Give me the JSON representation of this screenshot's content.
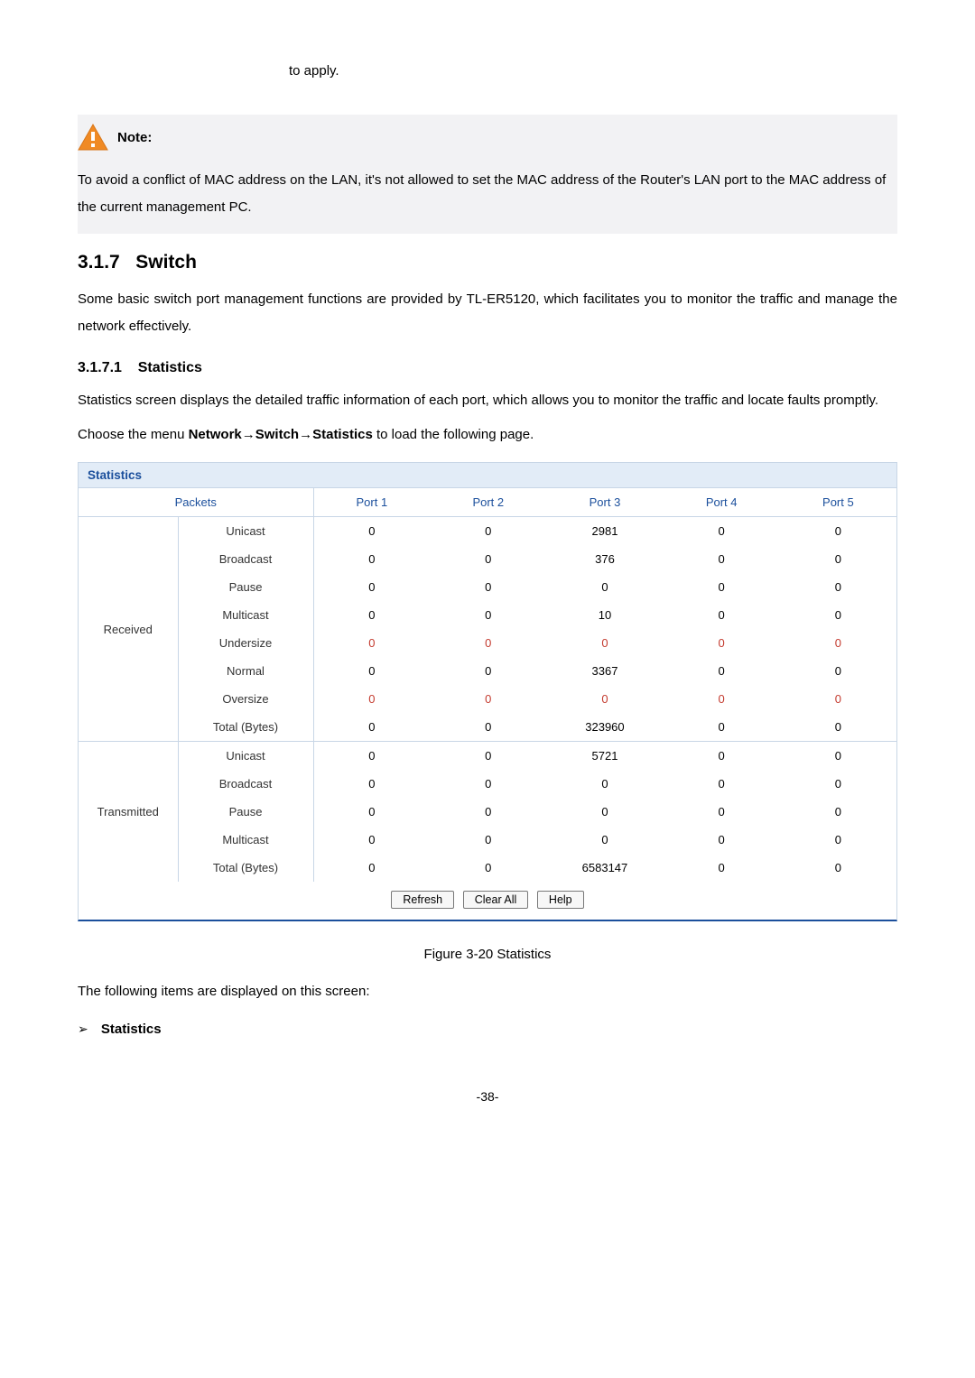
{
  "fragment_top": "to apply.",
  "note": {
    "label": "Note:",
    "body": "To avoid a conflict of MAC address on the LAN, it's not allowed to set the MAC address of the Router's LAN port to the MAC address of the current management PC."
  },
  "section_switch": {
    "number": "3.1.7",
    "title": "Switch",
    "intro": "Some basic switch port management functions are provided by TL-ER5120, which facilitates you to monitor the traffic and manage the network effectively."
  },
  "section_stats": {
    "number": "3.1.7.1",
    "title": "Statistics",
    "intro": "Statistics screen displays the detailed traffic information of each port, which allows you to monitor the traffic and locate faults promptly.",
    "menu_prefix": "Choose the menu ",
    "menu_path": "Network→Switch→Statistics",
    "menu_suffix": " to load the following page."
  },
  "stats_panel": {
    "title": "Statistics",
    "header_packets": "Packets",
    "port_headers": [
      "Port 1",
      "Port 2",
      "Port 3",
      "Port 4",
      "Port 5"
    ],
    "groups": [
      {
        "name": "Received",
        "rows": [
          {
            "label": "Unicast",
            "values": [
              "0",
              "0",
              "2981",
              "0",
              "0"
            ],
            "red": false
          },
          {
            "label": "Broadcast",
            "values": [
              "0",
              "0",
              "376",
              "0",
              "0"
            ],
            "red": false
          },
          {
            "label": "Pause",
            "values": [
              "0",
              "0",
              "0",
              "0",
              "0"
            ],
            "red": false
          },
          {
            "label": "Multicast",
            "values": [
              "0",
              "0",
              "10",
              "0",
              "0"
            ],
            "red": false
          },
          {
            "label": "Undersize",
            "values": [
              "0",
              "0",
              "0",
              "0",
              "0"
            ],
            "red": true
          },
          {
            "label": "Normal",
            "values": [
              "0",
              "0",
              "3367",
              "0",
              "0"
            ],
            "red": false
          },
          {
            "label": "Oversize",
            "values": [
              "0",
              "0",
              "0",
              "0",
              "0"
            ],
            "red": true
          },
          {
            "label": "Total (Bytes)",
            "values": [
              "0",
              "0",
              "323960",
              "0",
              "0"
            ],
            "red": false
          }
        ]
      },
      {
        "name": "Transmitted",
        "rows": [
          {
            "label": "Unicast",
            "values": [
              "0",
              "0",
              "5721",
              "0",
              "0"
            ],
            "red": false
          },
          {
            "label": "Broadcast",
            "values": [
              "0",
              "0",
              "0",
              "0",
              "0"
            ],
            "red": false
          },
          {
            "label": "Pause",
            "values": [
              "0",
              "0",
              "0",
              "0",
              "0"
            ],
            "red": false
          },
          {
            "label": "Multicast",
            "values": [
              "0",
              "0",
              "0",
              "0",
              "0"
            ],
            "red": false
          },
          {
            "label": "Total (Bytes)",
            "values": [
              "0",
              "0",
              "6583147",
              "0",
              "0"
            ],
            "red": false
          }
        ]
      }
    ],
    "buttons": {
      "refresh": "Refresh",
      "clear": "Clear All",
      "help": "Help"
    }
  },
  "figure_caption": "Figure 3-20 Statistics",
  "post_text": "The following items are displayed on this screen:",
  "bullet_label": "Statistics",
  "page_number": "-38-",
  "colors": {
    "note_bg": "#f2f2f4",
    "panel_border": "#c8d6e6",
    "panel_header_bg": "#e2ecf7",
    "accent_blue": "#1b4f9c",
    "warn_red": "#c43b2f",
    "rule_blue": "#1b4f9c"
  }
}
